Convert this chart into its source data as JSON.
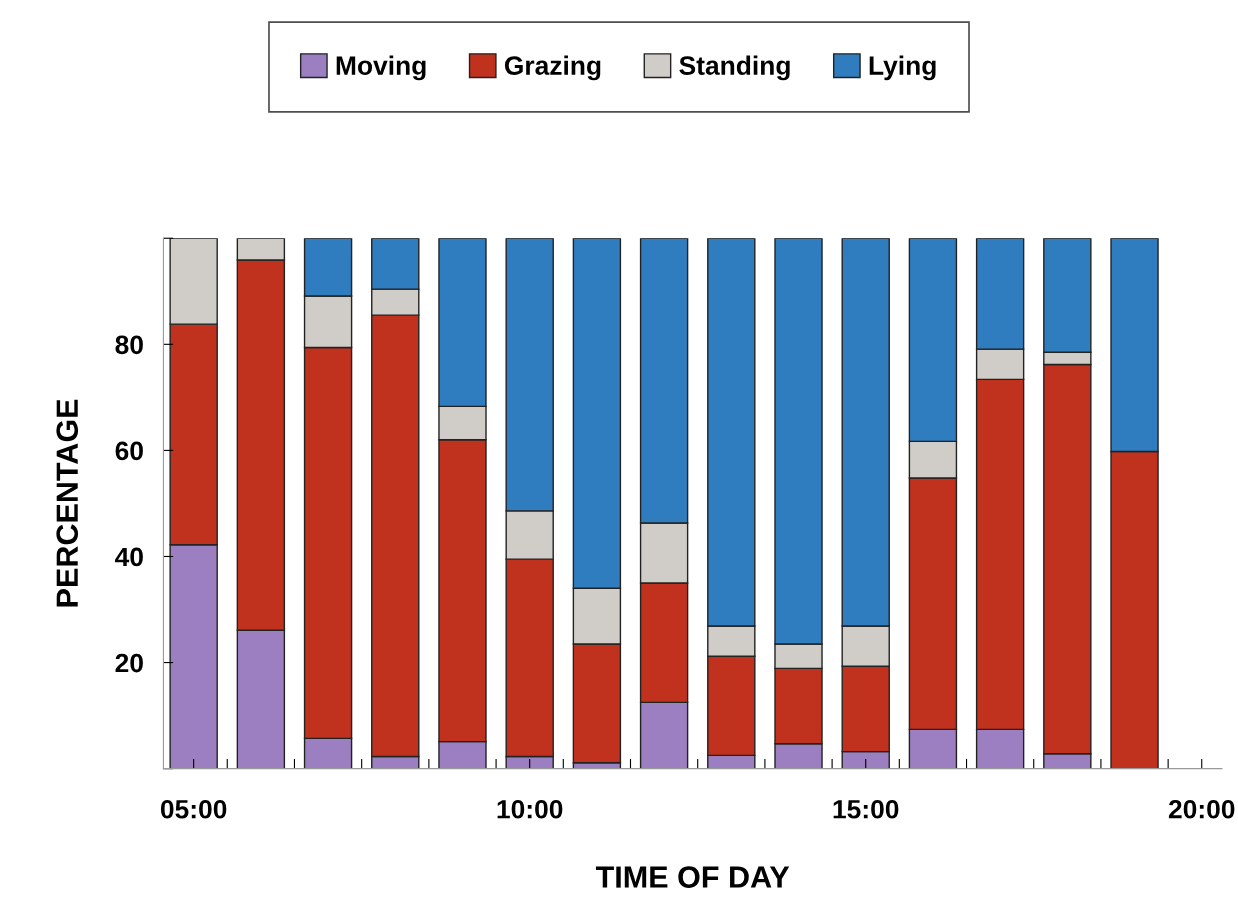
{
  "chart_data": {
    "type": "bar",
    "stacked": true,
    "xlabel": "TIME OF DAY",
    "ylabel": "PERCENTAGE",
    "x": [
      5,
      6,
      7,
      8,
      9,
      10,
      11,
      12,
      13,
      14,
      15,
      16,
      17,
      18,
      19
    ],
    "xlim": [
      4.55,
      20.3
    ],
    "xticks": [
      {
        "value": 5,
        "label": "05:00"
      },
      {
        "value": 5.5,
        "label": null
      },
      {
        "value": 6.5,
        "label": null
      },
      {
        "value": 7.5,
        "label": null
      },
      {
        "value": 8.5,
        "label": null
      },
      {
        "value": 9.5,
        "label": null
      },
      {
        "value": 10,
        "label": "10:00"
      },
      {
        "value": 10.5,
        "label": null
      },
      {
        "value": 11.5,
        "label": null
      },
      {
        "value": 12.5,
        "label": null
      },
      {
        "value": 13.5,
        "label": null
      },
      {
        "value": 14.5,
        "label": null
      },
      {
        "value": 15,
        "label": "15:00"
      },
      {
        "value": 15.5,
        "label": null
      },
      {
        "value": 16.5,
        "label": null
      },
      {
        "value": 17.5,
        "label": null
      },
      {
        "value": 18.5,
        "label": null
      },
      {
        "value": 19.5,
        "label": null
      },
      {
        "value": 20,
        "label": "20:00"
      }
    ],
    "ylim": [
      0,
      100
    ],
    "yticks": [
      {
        "value": 0,
        "label": null
      },
      20,
      40,
      60,
      80,
      {
        "value": 100,
        "label": null
      }
    ],
    "legend": "top",
    "grid": false,
    "series": [
      {
        "name": "Moving",
        "color": "#9b7fc0",
        "values": [
          42.2,
          26.1,
          5.7,
          2.3,
          5.1,
          2.3,
          1.1,
          12.5,
          2.5,
          4.7,
          3.2,
          7.4,
          7.4,
          2.8,
          null
        ]
      },
      {
        "name": "Grazing",
        "color": "#c0311e",
        "values": [
          41.6,
          69.8,
          73.7,
          83.2,
          56.9,
          37.2,
          22.4,
          22.5,
          18.7,
          14.2,
          16.1,
          47.4,
          66.0,
          73.4,
          59.8
        ]
      },
      {
        "name": "Standing",
        "color": "#d0cdc8",
        "values": [
          16.2,
          4.1,
          9.7,
          4.9,
          6.3,
          9.1,
          10.5,
          11.3,
          5.7,
          4.6,
          7.6,
          6.9,
          5.7,
          2.3,
          null
        ]
      },
      {
        "name": "Lying",
        "color": "#2f7dbf",
        "values": [
          null,
          null,
          10.9,
          9.6,
          31.7,
          51.4,
          66.0,
          53.7,
          73.1,
          76.5,
          73.1,
          38.3,
          20.9,
          21.5,
          40.2
        ]
      }
    ]
  }
}
